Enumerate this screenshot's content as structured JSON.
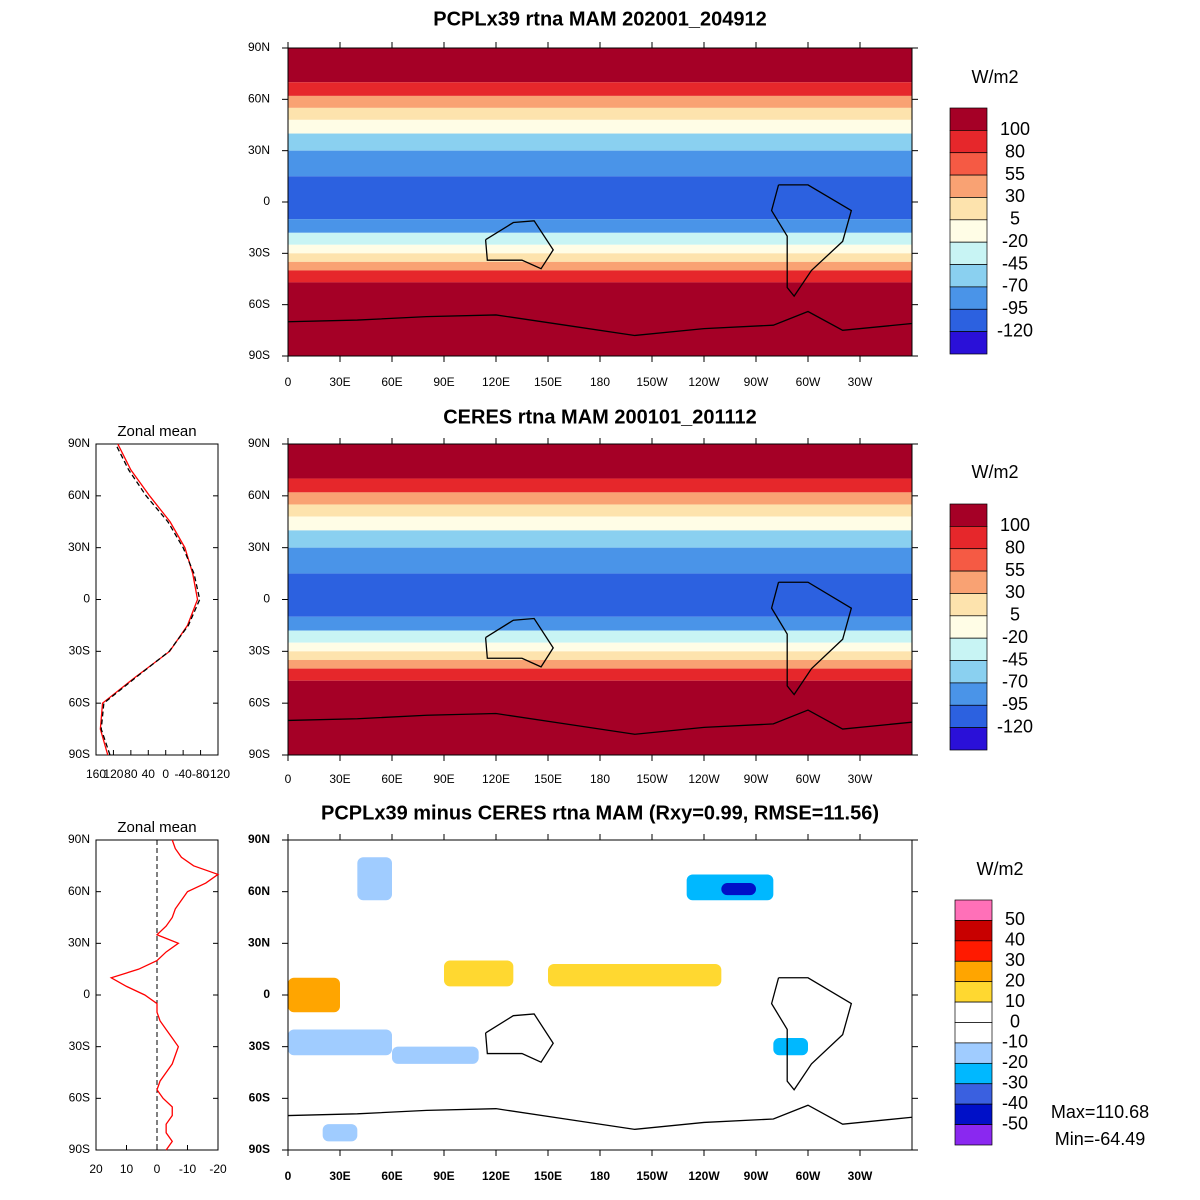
{
  "panels": [
    {
      "title": "PCPLx39 rtna MAM 202001_204912",
      "colorbar": {
        "unit": "W/m2",
        "labels": [
          100,
          80,
          55,
          30,
          5,
          -20,
          -45,
          -70,
          -95,
          -120
        ],
        "colors": [
          "#a50026",
          "#e6272b",
          "#f55a44",
          "#f9a273",
          "#fde3ad",
          "#fffde6",
          "#c8f4f4",
          "#8ad0f0",
          "#4a94e8",
          "#2c61e0",
          "#2a10d8"
        ]
      }
    },
    {
      "title": "CERES rtna MAM 200101_201112",
      "colorbar": {
        "unit": "W/m2",
        "labels": [
          100,
          80,
          55,
          30,
          5,
          -20,
          -45,
          -70,
          -95,
          -120
        ],
        "colors": [
          "#a50026",
          "#e6272b",
          "#f55a44",
          "#f9a273",
          "#fde3ad",
          "#fffde6",
          "#c8f4f4",
          "#8ad0f0",
          "#4a94e8",
          "#2c61e0",
          "#2a10d8"
        ]
      }
    },
    {
      "title": "PCPLx39 minus CERES rtna MAM (Rxy=0.99, RMSE=11.56)",
      "colorbar": {
        "unit": "W/m2",
        "labels": [
          50,
          40,
          30,
          20,
          10,
          0,
          -10,
          -20,
          -30,
          -40,
          -50
        ],
        "colors": [
          "#ff70b8",
          "#c80000",
          "#ff1a00",
          "#ffa500",
          "#ffd830",
          "#ffffff",
          "#ffffff",
          "#a0ccff",
          "#00b8ff",
          "#3a60e0",
          "#0010c8",
          "#8a28f0"
        ]
      },
      "stats": [
        "Max=110.68",
        "Min=-64.49"
      ]
    }
  ],
  "lon_ticks": [
    0,
    {
      "value": 30,
      "label": "30E"
    },
    {
      "value": 60,
      "label": "60E"
    },
    {
      "value": 90,
      "label": "90E"
    },
    {
      "value": 120,
      "label": "120E"
    },
    {
      "value": 150,
      "label": "150E"
    },
    {
      "value": 180,
      "label": "180"
    },
    {
      "value": 210,
      "label": "150W"
    },
    {
      "value": 240,
      "label": "120W"
    },
    {
      "value": 270,
      "label": "90W"
    },
    {
      "value": 300,
      "label": "60W"
    },
    {
      "value": 330,
      "label": "30W"
    }
  ],
  "lat_ticks": [
    {
      "value": 90,
      "label": "90N"
    },
    {
      "value": 60,
      "label": "60N"
    },
    {
      "value": 30,
      "label": "30N"
    },
    0,
    {
      "value": -30,
      "label": "30S"
    },
    {
      "value": -60,
      "label": "60S"
    },
    {
      "value": -90,
      "label": "90S"
    }
  ],
  "zonal_mean": [
    {
      "type": "line",
      "title": "Zonal mean",
      "panel": 1,
      "lat": [
        -90,
        -75,
        -60,
        -45,
        -30,
        -15,
        0,
        15,
        30,
        45,
        60,
        75,
        90
      ],
      "xlim": [
        160,
        -120
      ],
      "xticks": [
        160,
        120,
        80,
        40,
        0,
        -40,
        -80,
        -120
      ],
      "series": [
        {
          "color": "#ff0000",
          "dash": false,
          "values": [
            133,
            150,
            145,
            70,
            -9,
            -50,
            -73,
            -62,
            -44,
            -10,
            37,
            80,
            110
          ]
        },
        {
          "color": "#000000",
          "dash": true,
          "values": [
            128,
            148,
            142,
            68,
            -8,
            -52,
            -78,
            -65,
            -40,
            -5,
            45,
            85,
            115
          ]
        }
      ]
    },
    {
      "type": "line",
      "title": "Zonal mean",
      "panel": 2,
      "lat": [
        -90,
        -85,
        -80,
        -75,
        -70,
        -65,
        -60,
        -55,
        -50,
        -45,
        -40,
        -35,
        -30,
        -25,
        -20,
        -15,
        -10,
        -5,
        0,
        5,
        10,
        15,
        20,
        25,
        30,
        35,
        40,
        45,
        50,
        55,
        60,
        65,
        70,
        75,
        80,
        85,
        90
      ],
      "xlim": [
        20,
        -20
      ],
      "xticks": [
        20,
        10,
        0,
        -10,
        -20
      ],
      "series": [
        {
          "color": "#ff0000",
          "dash": false,
          "values": [
            -3,
            -5,
            -3,
            -3,
            -5,
            -5,
            -2,
            0,
            -1,
            -3,
            -5,
            -6,
            -7,
            -5,
            -3,
            -1,
            0,
            0,
            4,
            10,
            15,
            6,
            0,
            -3,
            -7,
            0,
            -3,
            -5,
            -6,
            -8,
            -10,
            -16,
            -20,
            -12,
            -8,
            -6,
            -5
          ]
        }
      ]
    }
  ]
}
